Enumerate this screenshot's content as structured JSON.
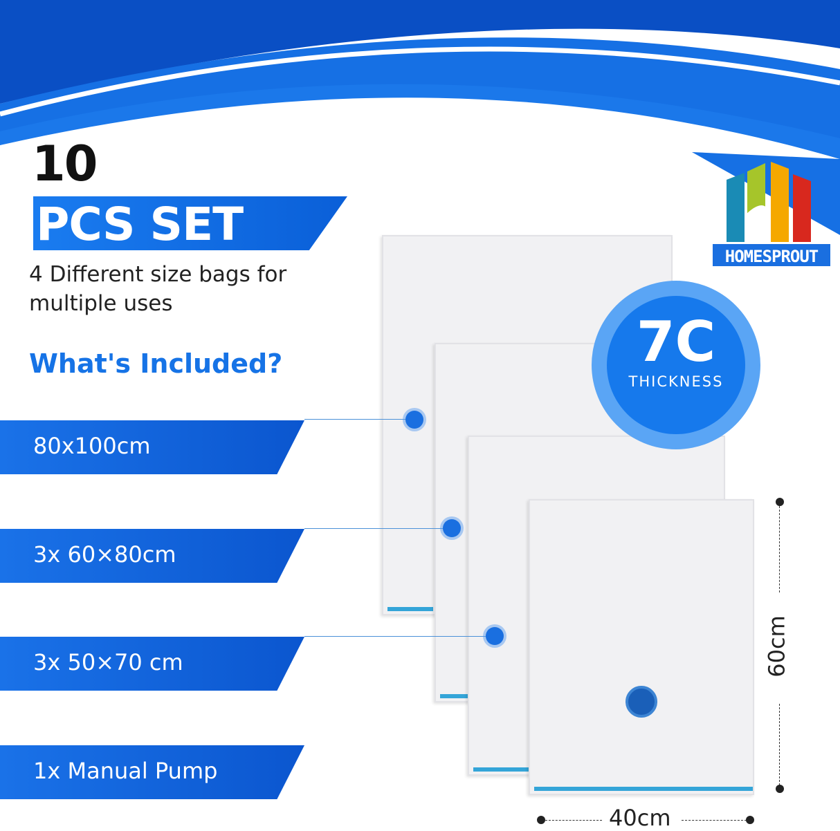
{
  "heading": {
    "count": "10",
    "set_label": "PCS SET",
    "subtitle": "4 Different size bags for multiple uses",
    "included_title": "What's Included?"
  },
  "items": [
    {
      "label": "80x100cm"
    },
    {
      "label": "3x 60×80cm"
    },
    {
      "label": "3x 50×70 cm"
    },
    {
      "label": "1x Manual Pump"
    }
  ],
  "badge": {
    "value": "7C",
    "label": "THICKNESS"
  },
  "logo": {
    "name": "HOMESPROUT",
    "colors": [
      "#1a8bb5",
      "#a6c52a",
      "#f5a800",
      "#d8281e"
    ]
  },
  "dimensions": {
    "height": "60cm",
    "width": "40cm"
  },
  "colors": {
    "primary": "#1673e6",
    "dark_blue": "#0a5fd8"
  }
}
